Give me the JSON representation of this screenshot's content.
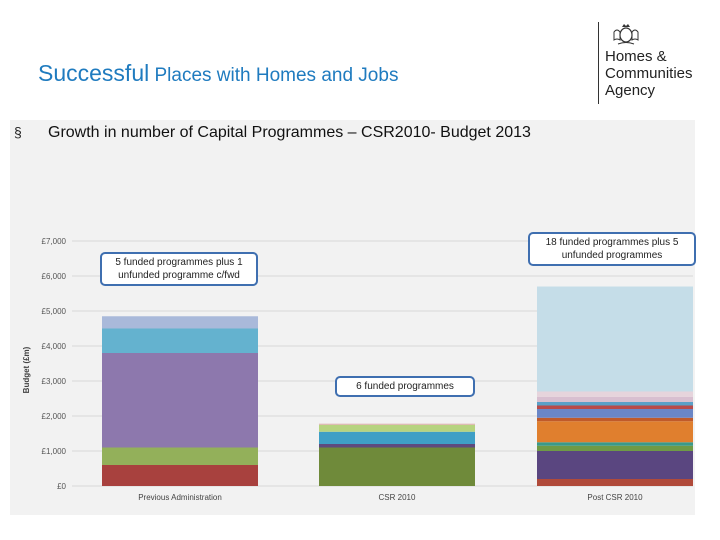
{
  "header": {
    "title_part1": "Successful",
    "title_part2": " Places with Homes and Jobs",
    "bullet": "§",
    "subtitle": "Growth in number of Capital Programmes – CSR2010- Budget 2013"
  },
  "logo": {
    "line1": "Homes &",
    "line2": "Communities",
    "line3": "Agency",
    "crest_icon": "royal-crest-icon"
  },
  "callouts": {
    "previous": "5 funded programmes plus 1 unfunded programme c/fwd",
    "csr": "6 funded programmes",
    "post": "18 funded programmes plus 5 unfunded programmes"
  },
  "chart_data": {
    "type": "bar",
    "stacked": true,
    "ylabel": "Budget (£m)",
    "ylim": [
      0,
      7000
    ],
    "yticks": [
      "£0",
      "£1,000",
      "£2,000",
      "£3,000",
      "£4,000",
      "£5,000",
      "£6,000",
      "£7,000"
    ],
    "categories": [
      "Previous Administration",
      "CSR 2010",
      "Post CSR 2010"
    ],
    "grid": true,
    "stacks": [
      [
        {
          "value": 600,
          "color": "#a8413e"
        },
        {
          "value": 500,
          "color": "#93b05a"
        },
        {
          "value": 2700,
          "color": "#8d78ad"
        },
        {
          "value": 700,
          "color": "#64b2cf"
        },
        {
          "value": 350,
          "color": "#a9b9da"
        }
      ],
      [
        {
          "value": 1100,
          "color": "#6f8a3a"
        },
        {
          "value": 100,
          "color": "#5e4a7e"
        },
        {
          "value": 350,
          "color": "#3f9fc6"
        },
        {
          "value": 200,
          "color": "#b6d37f"
        },
        {
          "value": 30,
          "color": "#e0b0b0"
        }
      ],
      [
        {
          "value": 200,
          "color": "#b04a3a"
        },
        {
          "value": 800,
          "color": "#5a4680"
        },
        {
          "value": 150,
          "color": "#6f9a46"
        },
        {
          "value": 100,
          "color": "#3a9a8a"
        },
        {
          "value": 600,
          "color": "#e07f2e"
        },
        {
          "value": 100,
          "color": "#c05a2a"
        },
        {
          "value": 250,
          "color": "#6a86c6"
        },
        {
          "value": 100,
          "color": "#b84a4a"
        },
        {
          "value": 100,
          "color": "#5aa0c8"
        },
        {
          "value": 150,
          "color": "#d8bfd0"
        },
        {
          "value": 150,
          "color": "#e6d4dc"
        },
        {
          "value": 3000,
          "color": "#c5dde8"
        }
      ]
    ]
  }
}
